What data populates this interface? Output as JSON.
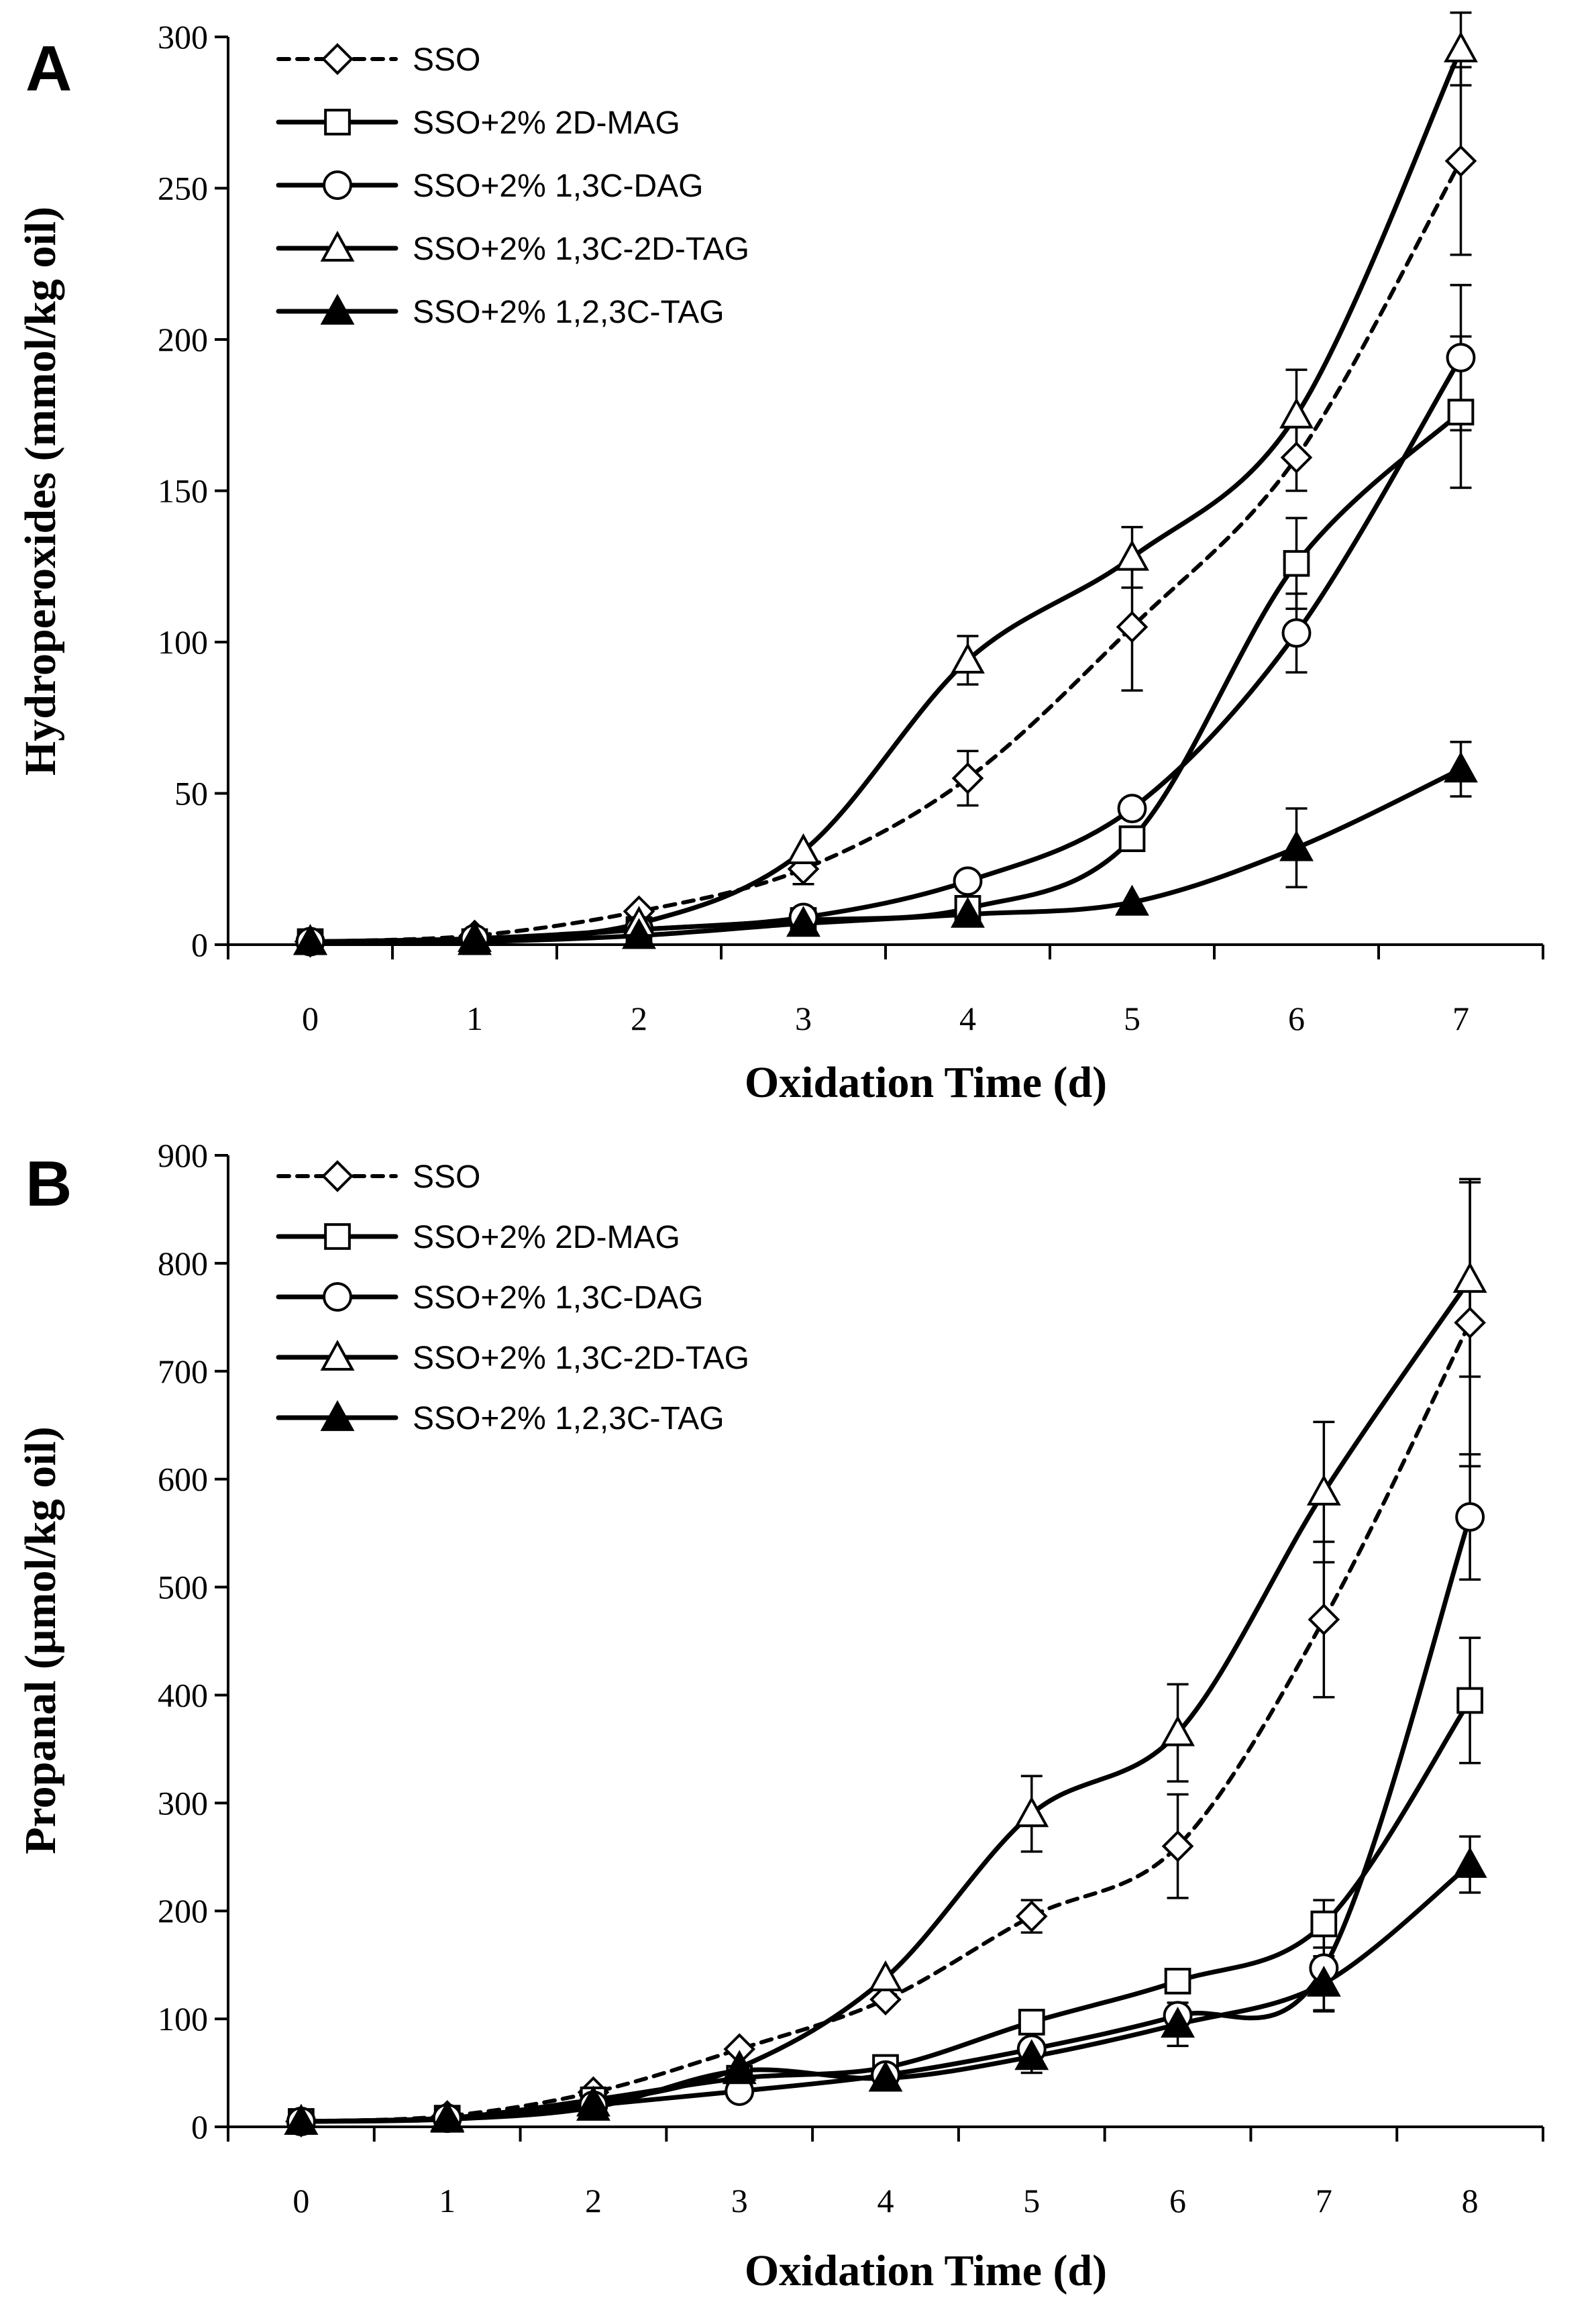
{
  "chart_data": [
    {
      "type": "line",
      "panel": "A",
      "xlabel": "Oxidation Time (d)",
      "ylabel": "Hydroperoxides (mmol/kg oil)",
      "x": [
        0,
        1,
        2,
        3,
        4,
        5,
        6,
        7
      ],
      "xlim": [
        -0.5,
        7.5
      ],
      "ylim": [
        0,
        300
      ],
      "yticks": [
        0,
        50,
        100,
        150,
        200,
        250,
        300
      ],
      "legend_position": "top-left",
      "series": [
        {
          "name": "SSO",
          "marker": "diamond-open",
          "dashed": true,
          "values": [
            1,
            3,
            11,
            25,
            55,
            105,
            161,
            259
          ],
          "errors": [
            0,
            0,
            0,
            5,
            9,
            21,
            11,
            31
          ]
        },
        {
          "name": "SSO+2% 2D-MAG",
          "marker": "square-open",
          "dashed": false,
          "values": [
            1,
            1,
            5,
            8,
            12,
            35,
            126,
            176
          ],
          "errors": [
            0,
            0,
            0,
            0,
            0,
            0,
            15,
            25
          ]
        },
        {
          "name": "SSO+2% 1,3C-DAG",
          "marker": "circle-open",
          "dashed": false,
          "values": [
            1,
            2,
            5,
            9,
            21,
            45,
            103,
            194
          ],
          "errors": [
            0,
            0,
            0,
            0,
            0,
            0,
            13,
            24
          ]
        },
        {
          "name": "SSO+2% 1,3C-2D-TAG",
          "marker": "triangle-open",
          "dashed": false,
          "values": [
            1,
            2,
            7,
            31,
            94,
            128,
            175,
            296
          ],
          "errors": [
            0,
            0,
            0,
            0,
            8,
            10,
            15,
            12
          ]
        },
        {
          "name": "SSO+2% 1,2,3C-TAG",
          "marker": "triangle-filled",
          "dashed": false,
          "values": [
            1,
            1,
            3,
            7,
            10,
            14,
            32,
            58
          ],
          "errors": [
            0,
            0,
            0,
            0,
            0,
            0,
            13,
            9
          ]
        }
      ]
    },
    {
      "type": "line",
      "panel": "B",
      "xlabel": "Oxidation Time (d)",
      "ylabel": "Propanal (μmol/kg oil)",
      "x": [
        0,
        1,
        2,
        3,
        4,
        5,
        6,
        7,
        8
      ],
      "xlim": [
        -0.5,
        8.5
      ],
      "ylim": [
        0,
        900
      ],
      "yticks": [
        0,
        100,
        200,
        300,
        400,
        500,
        600,
        700,
        800,
        900
      ],
      "legend_position": "top-left",
      "series": [
        {
          "name": "SSO",
          "marker": "diamond-open",
          "dashed": true,
          "values": [
            5,
            10,
            32,
            72,
            118,
            195,
            260,
            470,
            745
          ],
          "errors": [
            0,
            0,
            0,
            0,
            0,
            15,
            48,
            72,
            133
          ]
        },
        {
          "name": "SSO+2% 2D-MAG",
          "marker": "square-open",
          "dashed": false,
          "values": [
            5,
            8,
            25,
            45,
            55,
            97,
            135,
            188,
            395
          ],
          "errors": [
            0,
            0,
            0,
            0,
            0,
            0,
            0,
            22,
            58
          ]
        },
        {
          "name": "SSO+2% 1,3C-DAG",
          "marker": "circle-open",
          "dashed": false,
          "values": [
            5,
            8,
            20,
            33,
            48,
            72,
            103,
            147,
            565
          ],
          "errors": [
            0,
            0,
            0,
            0,
            0,
            0,
            0,
            40,
            58
          ]
        },
        {
          "name": "SSO+2% 1,3C-2D-TAG",
          "marker": "triangle-open",
          "dashed": false,
          "values": [
            5,
            8,
            22,
            55,
            138,
            290,
            365,
            588,
            785
          ],
          "errors": [
            0,
            0,
            0,
            0,
            0,
            35,
            45,
            65,
            90
          ]
        },
        {
          "name": "SSO+2% 1,2,3C-TAG",
          "marker": "triangle-filled",
          "dashed": false,
          "values": [
            5,
            7,
            18,
            52,
            45,
            65,
            95,
            133,
            243
          ],
          "errors": [
            0,
            0,
            0,
            0,
            0,
            15,
            20,
            25,
            26
          ]
        }
      ]
    }
  ]
}
